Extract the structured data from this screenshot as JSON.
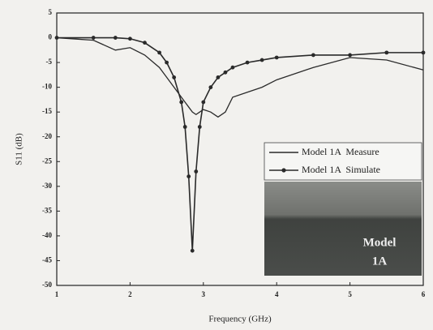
{
  "chart_data": {
    "type": "line",
    "x_label": "Frequency (GHz)",
    "y_label": "S11 (dB)",
    "x": [
      1,
      1.5,
      1.8,
      2,
      2.2,
      2.4,
      2.5,
      2.6,
      2.7,
      2.75,
      2.8,
      2.85,
      2.9,
      2.95,
      3,
      3.1,
      3.2,
      3.3,
      3.4,
      3.6,
      3.8,
      4,
      4.5,
      5,
      5.5,
      6
    ],
    "series": [
      {
        "name": "Model 1A  Measure",
        "color": "#2a2a2a",
        "marker": false,
        "values": [
          0,
          -0.5,
          -2.5,
          -2,
          -3.5,
          -6,
          -8,
          -10,
          -12,
          -13,
          -14,
          -15,
          -15.5,
          -15,
          -14.5,
          -15,
          -16,
          -15,
          -12,
          -11,
          -10,
          -8.5,
          -6,
          -4,
          -4.5,
          -6.5
        ]
      },
      {
        "name": "Model 1A  Simulate",
        "color": "#2a2a2a",
        "marker": true,
        "values": [
          0,
          0,
          0,
          -0.2,
          -1,
          -3,
          -5,
          -8,
          -13,
          -18,
          -28,
          -43,
          -27,
          -18,
          -13,
          -10,
          -8,
          -7,
          -6,
          -5,
          -4.5,
          -4,
          -3.5,
          -3.5,
          -3,
          -3
        ]
      }
    ],
    "xlim": [
      1,
      6
    ],
    "xticks": [
      1,
      2,
      3,
      4,
      5,
      6
    ],
    "ylim": [
      -50,
      5
    ],
    "yticks": [
      5,
      0,
      -5,
      -10,
      -15,
      -20,
      -25,
      -30,
      -35,
      -40,
      -45,
      -50
    ],
    "inset_label": [
      "Model",
      "1A"
    ]
  }
}
